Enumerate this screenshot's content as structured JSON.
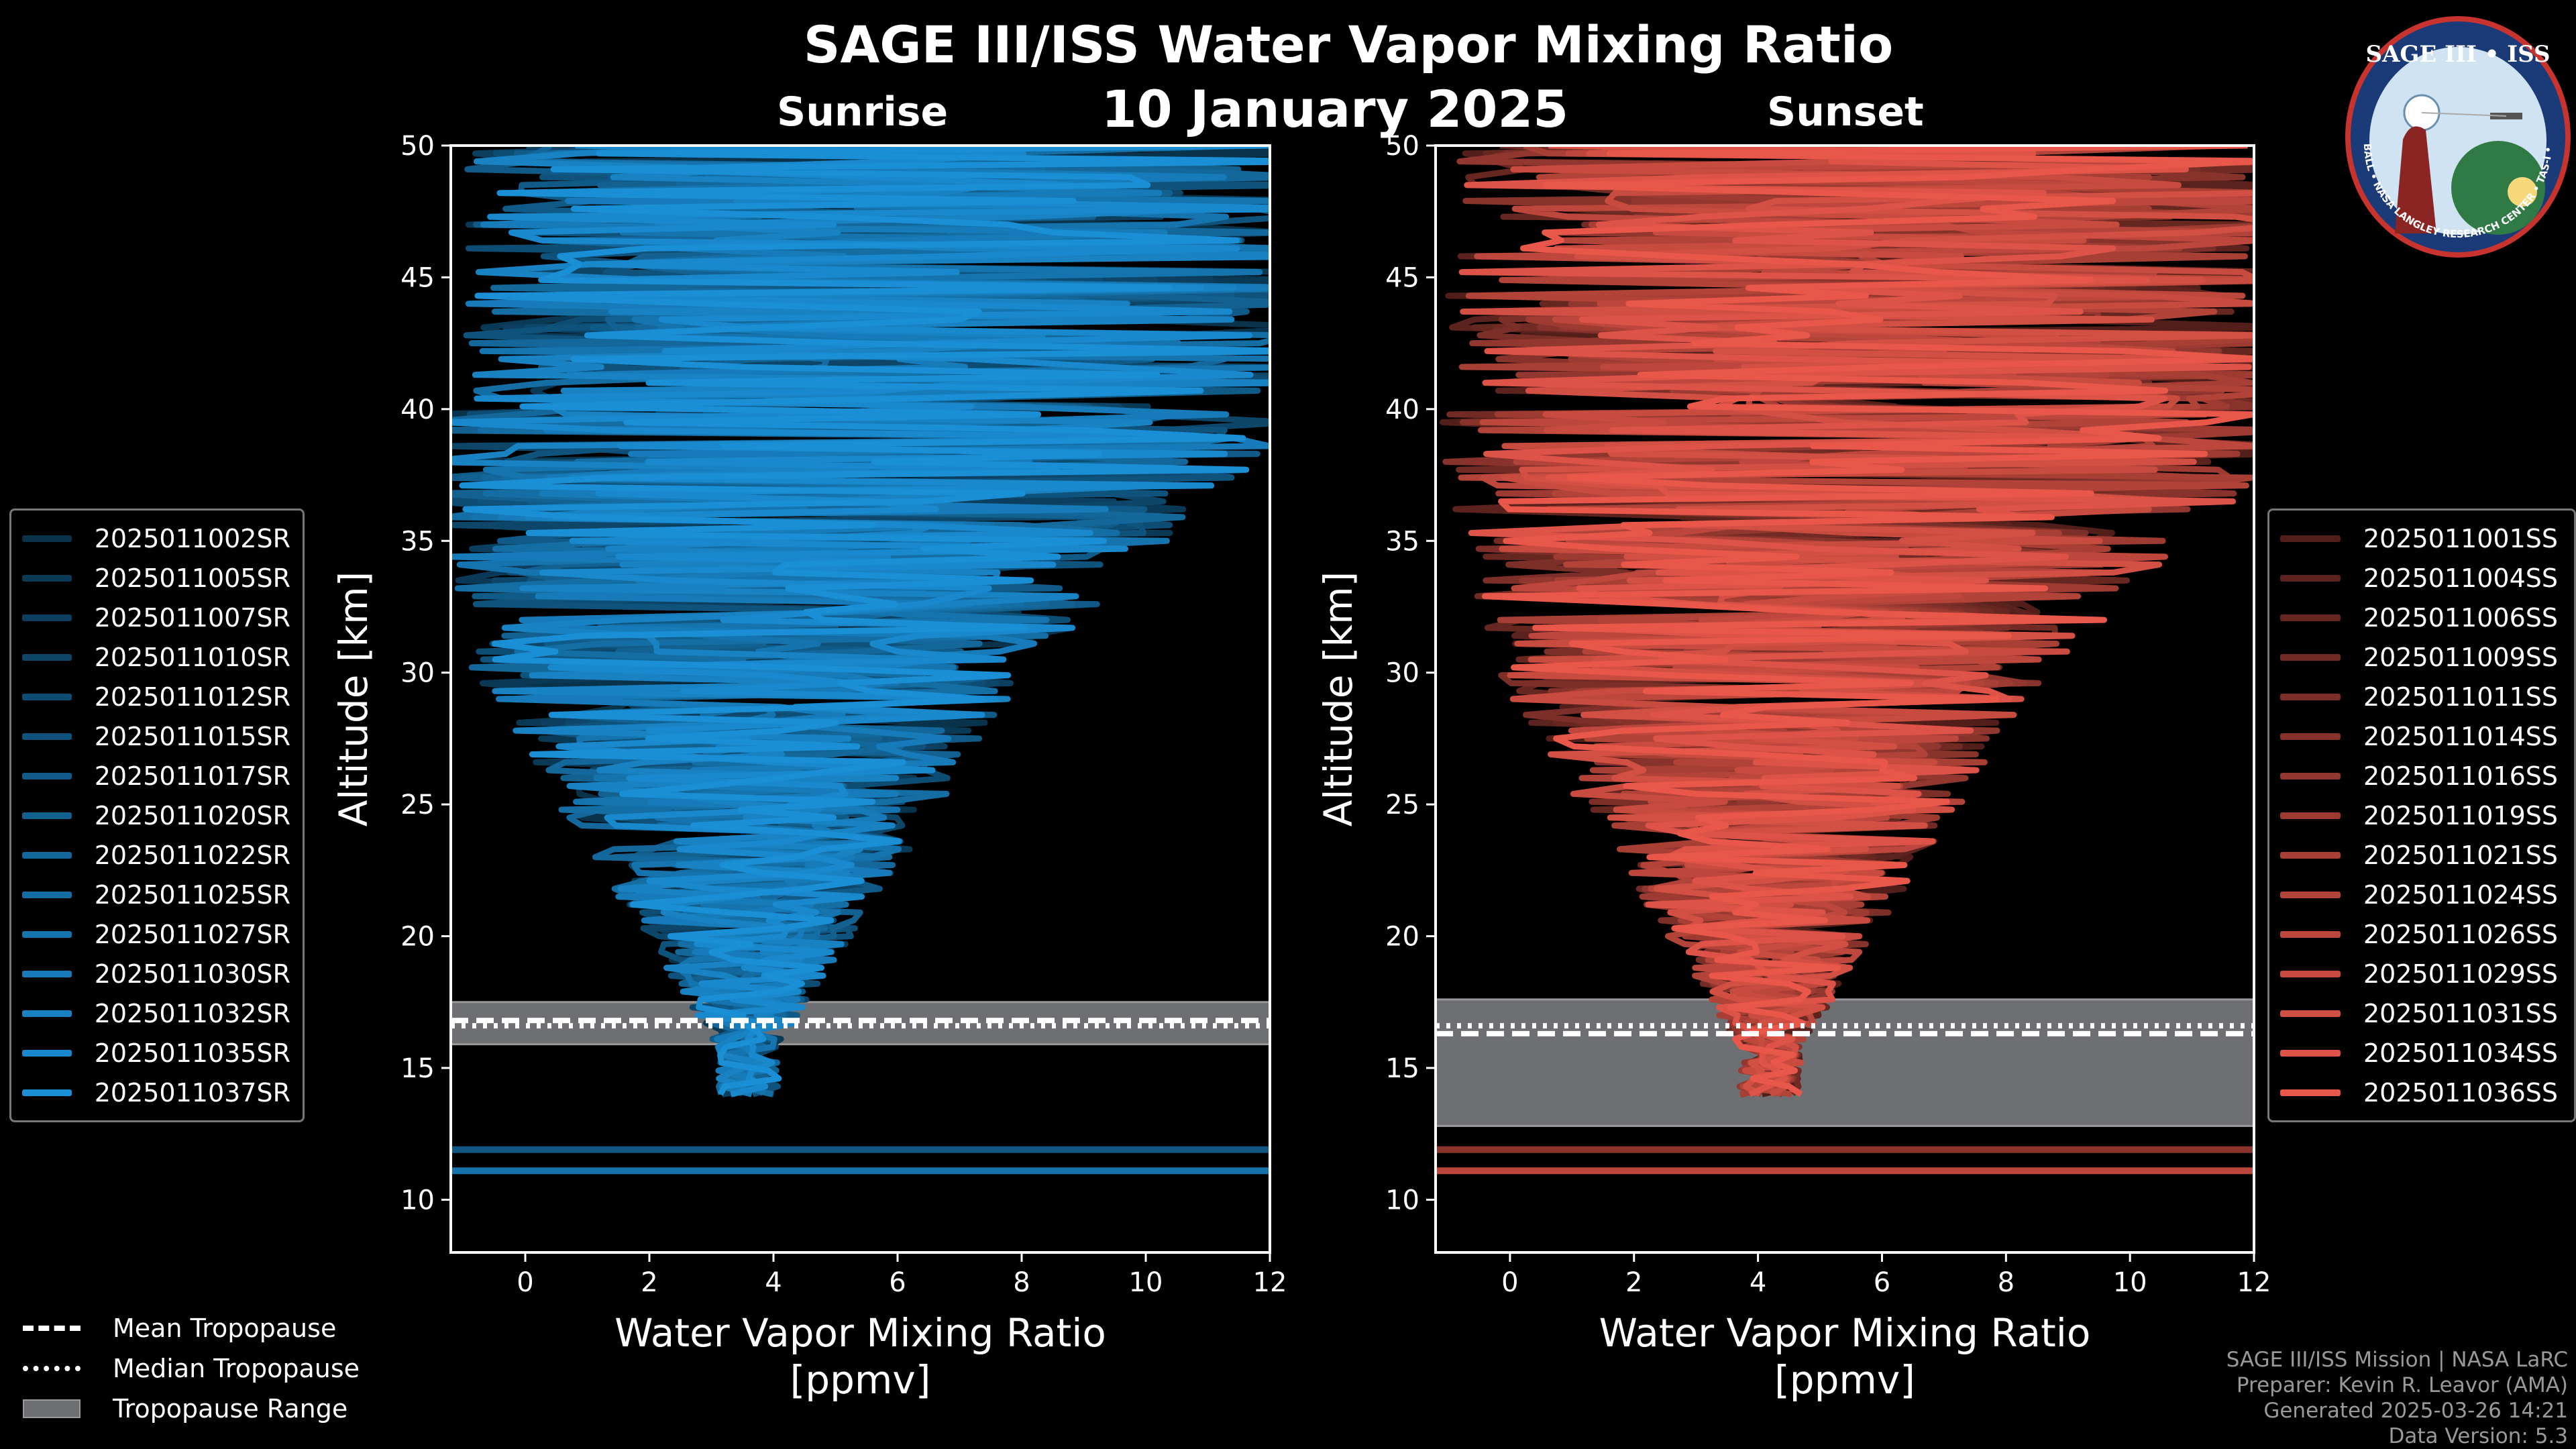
{
  "title": "SAGE III/ISS Water Vapor Mixing Ratio",
  "date": "10 January 2025",
  "panels": [
    {
      "label": "Sunrise",
      "color": "#1a8fd6"
    },
    {
      "label": "Sunset",
      "color": "#e8574a"
    }
  ],
  "logo": {
    "top_text": "SAGE III • ISS",
    "ring_text": "BALL • NASA LANGLEY RESEARCH CENTER • TAS-I • ESA"
  },
  "chart_data": [
    {
      "type": "line",
      "title": "Sunrise",
      "xlabel": "Water Vapor Mixing Ratio\n[ppmv]",
      "ylabel": "Altitude [km]",
      "xlim": [
        -1.2,
        12
      ],
      "ylim": [
        8,
        50
      ],
      "xticks": [
        0,
        2,
        4,
        6,
        8,
        10,
        12
      ],
      "yticks": [
        10,
        15,
        20,
        25,
        30,
        35,
        40,
        45,
        50
      ],
      "tropopause": {
        "mean": 16.8,
        "median": 16.6,
        "range": [
          15.9,
          17.5
        ]
      },
      "series": [
        {
          "name": "2025011002SR"
        },
        {
          "name": "2025011005SR"
        },
        {
          "name": "2025011007SR"
        },
        {
          "name": "2025011010SR"
        },
        {
          "name": "2025011012SR"
        },
        {
          "name": "2025011015SR"
        },
        {
          "name": "2025011017SR"
        },
        {
          "name": "2025011020SR"
        },
        {
          "name": "2025011022SR"
        },
        {
          "name": "2025011025SR"
        },
        {
          "name": "2025011027SR"
        },
        {
          "name": "2025011030SR"
        },
        {
          "name": "2025011032SR"
        },
        {
          "name": "2025011035SR"
        },
        {
          "name": "2025011037SR"
        }
      ]
    },
    {
      "type": "line",
      "title": "Sunset",
      "xlabel": "Water Vapor Mixing Ratio\n[ppmv]",
      "ylabel": "Altitude [km]",
      "xlim": [
        -1.2,
        12
      ],
      "ylim": [
        8,
        50
      ],
      "xticks": [
        0,
        2,
        4,
        6,
        8,
        10,
        12
      ],
      "yticks": [
        10,
        15,
        20,
        25,
        30,
        35,
        40,
        45,
        50
      ],
      "tropopause": {
        "mean": 16.3,
        "median": 16.6,
        "range": [
          12.8,
          17.6
        ]
      },
      "series": [
        {
          "name": "2025011001SS"
        },
        {
          "name": "2025011004SS"
        },
        {
          "name": "2025011006SS"
        },
        {
          "name": "2025011009SS"
        },
        {
          "name": "2025011011SS"
        },
        {
          "name": "2025011014SS"
        },
        {
          "name": "2025011016SS"
        },
        {
          "name": "2025011019SS"
        },
        {
          "name": "2025011021SS"
        },
        {
          "name": "2025011024SS"
        },
        {
          "name": "2025011026SS"
        },
        {
          "name": "2025011029SS"
        },
        {
          "name": "2025011031SS"
        },
        {
          "name": "2025011034SS"
        },
        {
          "name": "2025011036SS"
        }
      ]
    }
  ],
  "legend_bottom": {
    "mean": "Mean Tropopause",
    "median": "Median Tropopause",
    "range": "Tropopause Range"
  },
  "credits": [
    "SAGE III/ISS Mission | NASA LaRC",
    "Preparer: Kevin R. Leavor (AMA)",
    "Generated 2025-03-26 14:21",
    "Data Version: 5.3"
  ]
}
